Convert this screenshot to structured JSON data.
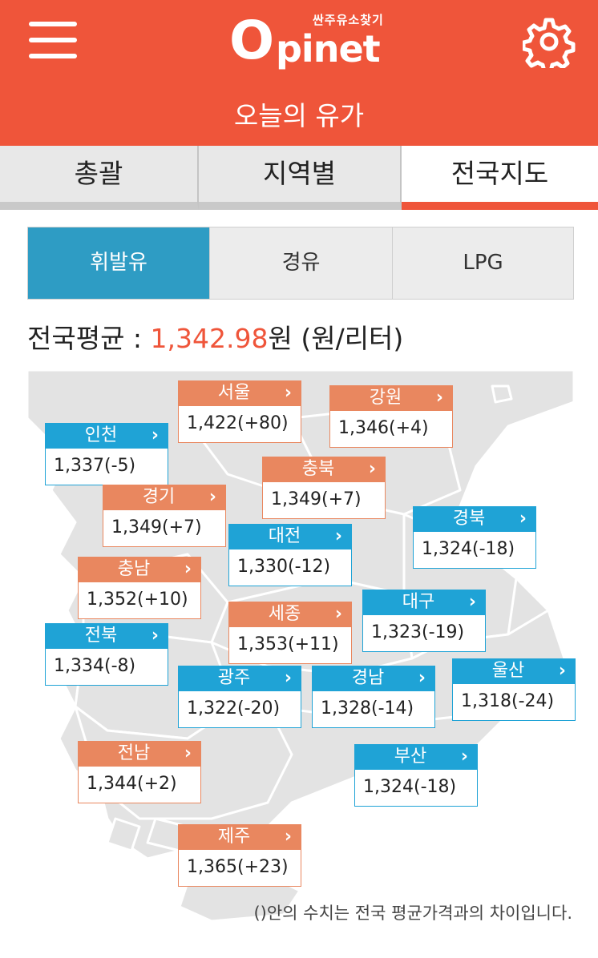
{
  "header": {
    "logo_tagline": "싼주유소찾기",
    "logo_o": "O",
    "logo_rest": "pinet",
    "title": "오늘의 유가"
  },
  "tabs": [
    {
      "label": "총괄"
    },
    {
      "label": "지역별"
    },
    {
      "label": "전국지도",
      "selected": true
    }
  ],
  "fuel_types": [
    {
      "label": "휘발유",
      "selected": true
    },
    {
      "label": "경유"
    },
    {
      "label": "LPG"
    }
  ],
  "average": {
    "label": "전국평균 : ",
    "value": "1,342.98",
    "unit_suffix": "원 (원/리터)"
  },
  "arrow_glyph": "›",
  "regions": [
    {
      "name": "서울",
      "price": "1,422(+80)",
      "color": "orange"
    },
    {
      "name": "강원",
      "price": "1,346(+4)",
      "color": "orange"
    },
    {
      "name": "인천",
      "price": "1,337(-5)",
      "color": "blue"
    },
    {
      "name": "충북",
      "price": "1,349(+7)",
      "color": "orange"
    },
    {
      "name": "경기",
      "price": "1,349(+7)",
      "color": "orange"
    },
    {
      "name": "경북",
      "price": "1,324(-18)",
      "color": "blue"
    },
    {
      "name": "대전",
      "price": "1,330(-12)",
      "color": "blue"
    },
    {
      "name": "충남",
      "price": "1,352(+10)",
      "color": "orange"
    },
    {
      "name": "대구",
      "price": "1,323(-19)",
      "color": "blue"
    },
    {
      "name": "세종",
      "price": "1,353(+11)",
      "color": "orange"
    },
    {
      "name": "전북",
      "price": "1,334(-8)",
      "color": "blue"
    },
    {
      "name": "울산",
      "price": "1,318(-24)",
      "color": "blue"
    },
    {
      "name": "광주",
      "price": "1,322(-20)",
      "color": "blue"
    },
    {
      "name": "경남",
      "price": "1,328(-14)",
      "color": "blue"
    },
    {
      "name": "전남",
      "price": "1,344(+2)",
      "color": "orange"
    },
    {
      "name": "부산",
      "price": "1,324(-18)",
      "color": "blue"
    },
    {
      "name": "제주",
      "price": "1,365(+23)",
      "color": "orange"
    }
  ],
  "footnote": "()안의 수치는 전국 평균가격과의 차이입니다.",
  "colors": {
    "header": "#ef553a",
    "orange_region": "#e9875f",
    "blue_region": "#1fa3d6",
    "selected_fuel": "#2e9cc4"
  }
}
